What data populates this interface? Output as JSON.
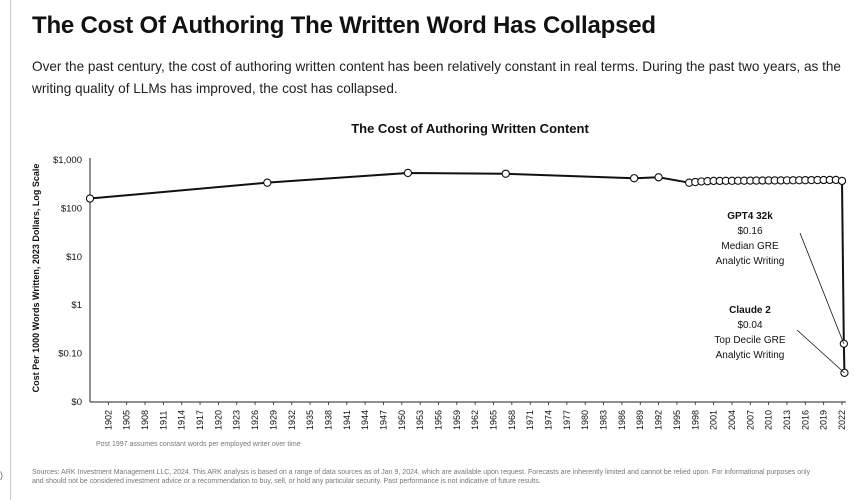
{
  "title": "The Cost Of Authoring The Written Word Has Collapsed",
  "intro": "Over the past century, the cost of authoring written content has been relatively constant in real terms. During the past two years, as the writing quality of LLMs has improved, the cost has collapsed.",
  "footer": "Sources: ARK Investment Management LLC, 2024. This ARK analysis is based on a range of data sources as of Jan 9, 2024, which are available upon request. Forecasts are inherently limited and cannot be relied upon. For informational purposes only and should not be considered investment advice or a recommendation to buy, sell, or hold any particular security. Past performance is not indicative of future results.",
  "side_mark": ")",
  "chart_data": {
    "type": "line",
    "title": "The Cost of Authoring Written Content",
    "xlabel": "",
    "ylabel": "Cost Per 1000 Words Written, 2023 Dollars, Log Scale",
    "y_scale": "log",
    "ylim": [
      0.01,
      1000
    ],
    "ytick_values": [
      0.01,
      0.1,
      1,
      10,
      100,
      1000
    ],
    "ytick_labels": [
      "$0",
      "$0.10",
      "$1",
      "$10",
      "$100",
      "$1,000"
    ],
    "xlim": [
      1899,
      2022
    ],
    "xtick_labels": [
      "1902",
      "1905",
      "1908",
      "1911",
      "1914",
      "1917",
      "1920",
      "1923",
      "1926",
      "1929",
      "1932",
      "1935",
      "1938",
      "1941",
      "1944",
      "1947",
      "1950",
      "1953",
      "1956",
      "1959",
      "1962",
      "1965",
      "1968",
      "1971",
      "1974",
      "1977",
      "1980",
      "1983",
      "1986",
      "1989",
      "1992",
      "1995",
      "1998",
      "2001",
      "2004",
      "2007",
      "2010",
      "2013",
      "2016",
      "2019",
      "2022"
    ],
    "grid": false,
    "marker": "hollow-circle",
    "line_color": "#111111",
    "note": "Post 1997 assumes constant words per employed writer over time",
    "series": [
      {
        "points": [
          [
            1899,
            160
          ],
          [
            1928,
            340
          ],
          [
            1951,
            540
          ],
          [
            1967,
            520
          ],
          [
            1988,
            420
          ],
          [
            1992,
            440
          ],
          [
            1997,
            340
          ],
          [
            1998,
            350
          ],
          [
            1999,
            360
          ],
          [
            2000,
            365
          ],
          [
            2001,
            370
          ],
          [
            2002,
            370
          ],
          [
            2003,
            372
          ],
          [
            2004,
            372
          ],
          [
            2005,
            373
          ],
          [
            2006,
            374
          ],
          [
            2007,
            375
          ],
          [
            2008,
            376
          ],
          [
            2009,
            377
          ],
          [
            2010,
            378
          ],
          [
            2011,
            378
          ],
          [
            2012,
            379
          ],
          [
            2013,
            380
          ],
          [
            2014,
            381
          ],
          [
            2015,
            382
          ],
          [
            2016,
            383
          ],
          [
            2017,
            384
          ],
          [
            2018,
            385
          ],
          [
            2019,
            386
          ],
          [
            2020,
            388
          ],
          [
            2021,
            388
          ],
          [
            2022,
            370
          ],
          [
            2022.3,
            0.16
          ],
          [
            2022.4,
            0.04
          ]
        ]
      }
    ],
    "annotations": [
      {
        "title": "GPT4 32k",
        "lines": [
          "$0.16",
          "Median GRE",
          "Analytic Writing"
        ],
        "x": 2022.3,
        "y": 0.16
      },
      {
        "title": "Claude 2",
        "lines": [
          "$0.04",
          "Top Decile GRE",
          "Analytic Writing"
        ],
        "x": 2022.4,
        "y": 0.04
      }
    ]
  }
}
